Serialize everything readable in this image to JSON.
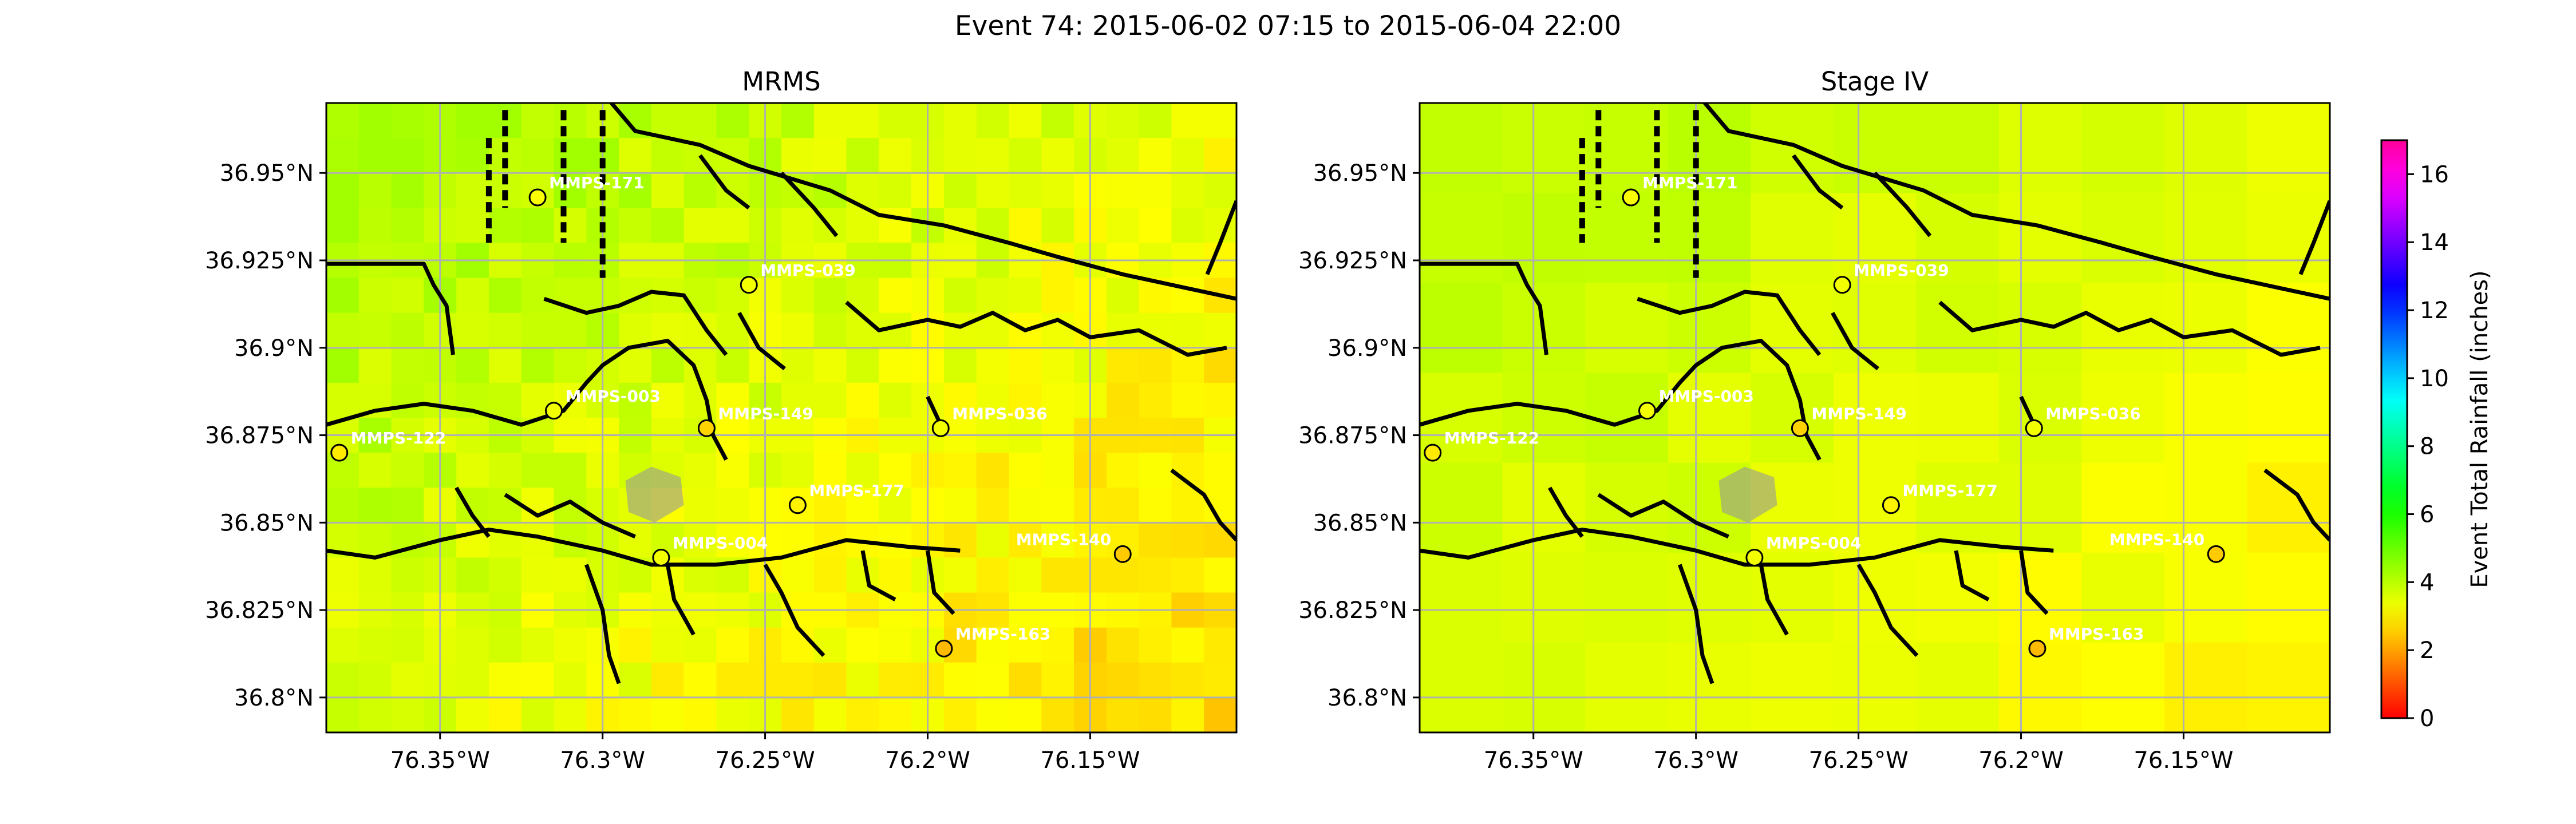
{
  "figure": {
    "title": "Event 74: 2015-06-02 07:15 to 2015-06-04 22:00"
  },
  "chart_data": [
    {
      "type": "heatmap",
      "title": "MRMS",
      "xlabel": "",
      "ylabel": "",
      "xlim": [
        -76.385,
        -76.105
      ],
      "ylim": [
        36.79,
        36.97
      ],
      "x_ticks": [
        -76.35,
        -76.3,
        -76.25,
        -76.2,
        -76.15
      ],
      "x_tick_labels": [
        "76.35°W",
        "76.3°W",
        "76.25°W",
        "76.2°W",
        "76.15°W"
      ],
      "y_ticks": [
        36.8,
        36.825,
        36.85,
        36.875,
        36.9,
        36.925,
        36.95
      ],
      "y_tick_labels": [
        "36.8°N",
        "36.825°N",
        "36.85°N",
        "36.875°N",
        "36.9°N",
        "36.925°N",
        "36.95°N"
      ],
      "grid": true,
      "colormap": "gist_rainbow",
      "grid_shape": {
        "rows": 18,
        "cols": 28
      },
      "value_range_inches": [
        2.2,
        4.3
      ],
      "gauges": [
        {
          "name": "MMPS-171",
          "lon": -76.32,
          "lat": 36.943,
          "value": 3.2
        },
        {
          "name": "MMPS-039",
          "lon": -76.255,
          "lat": 36.918,
          "value": 3.3
        },
        {
          "name": "MMPS-003",
          "lon": -76.315,
          "lat": 36.882,
          "value": 3.3
        },
        {
          "name": "MMPS-149",
          "lon": -76.268,
          "lat": 36.877,
          "value": 2.6
        },
        {
          "name": "MMPS-036",
          "lon": -76.196,
          "lat": 36.877,
          "value": 3.3
        },
        {
          "name": "MMPS-122",
          "lon": -76.381,
          "lat": 36.87,
          "value": 2.9
        },
        {
          "name": "MMPS-177",
          "lon": -76.24,
          "lat": 36.855,
          "value": 3.0
        },
        {
          "name": "MMPS-004",
          "lon": -76.282,
          "lat": 36.84,
          "value": 3.3
        },
        {
          "name": "MMPS-140",
          "lon": -76.14,
          "lat": 36.841,
          "value": 2.5
        },
        {
          "name": "MMPS-163",
          "lon": -76.195,
          "lat": 36.814,
          "value": 2.3
        }
      ]
    },
    {
      "type": "heatmap",
      "title": "Stage IV",
      "xlabel": "",
      "ylabel": "",
      "xlim": [
        -76.385,
        -76.105
      ],
      "ylim": [
        36.79,
        36.97
      ],
      "x_ticks": [
        -76.35,
        -76.3,
        -76.25,
        -76.2,
        -76.15
      ],
      "x_tick_labels": [
        "76.35°W",
        "76.3°W",
        "76.25°W",
        "76.2°W",
        "76.15°W"
      ],
      "y_ticks": [
        36.8,
        36.825,
        36.85,
        36.875,
        36.9,
        36.925,
        36.95
      ],
      "y_tick_labels": [
        "36.8°N",
        "36.825°N",
        "36.85°N",
        "36.875°N",
        "36.9°N",
        "36.925°N",
        "36.95°N"
      ],
      "grid": true,
      "colormap": "gist_rainbow",
      "grid_shape": {
        "rows": 7,
        "cols": 11
      },
      "value_range_inches": [
        2.8,
        4.0
      ],
      "gauges": [
        {
          "name": "MMPS-171",
          "lon": -76.32,
          "lat": 36.943,
          "value": 3.2
        },
        {
          "name": "MMPS-039",
          "lon": -76.255,
          "lat": 36.918,
          "value": 3.3
        },
        {
          "name": "MMPS-003",
          "lon": -76.315,
          "lat": 36.882,
          "value": 3.3
        },
        {
          "name": "MMPS-149",
          "lon": -76.268,
          "lat": 36.877,
          "value": 2.6
        },
        {
          "name": "MMPS-036",
          "lon": -76.196,
          "lat": 36.877,
          "value": 3.3
        },
        {
          "name": "MMPS-122",
          "lon": -76.381,
          "lat": 36.87,
          "value": 2.9
        },
        {
          "name": "MMPS-177",
          "lon": -76.24,
          "lat": 36.855,
          "value": 3.0
        },
        {
          "name": "MMPS-004",
          "lon": -76.282,
          "lat": 36.84,
          "value": 3.3
        },
        {
          "name": "MMPS-140",
          "lon": -76.14,
          "lat": 36.841,
          "value": 2.5
        },
        {
          "name": "MMPS-163",
          "lon": -76.195,
          "lat": 36.814,
          "value": 2.3
        }
      ]
    }
  ],
  "colorbar": {
    "label": "Event Total Rainfall (inches)",
    "range": [
      0,
      17
    ],
    "ticks": [
      0,
      2,
      4,
      6,
      8,
      10,
      12,
      14,
      16
    ],
    "tick_labels": [
      "0",
      "2",
      "4",
      "6",
      "8",
      "10",
      "12",
      "14",
      "16"
    ]
  }
}
